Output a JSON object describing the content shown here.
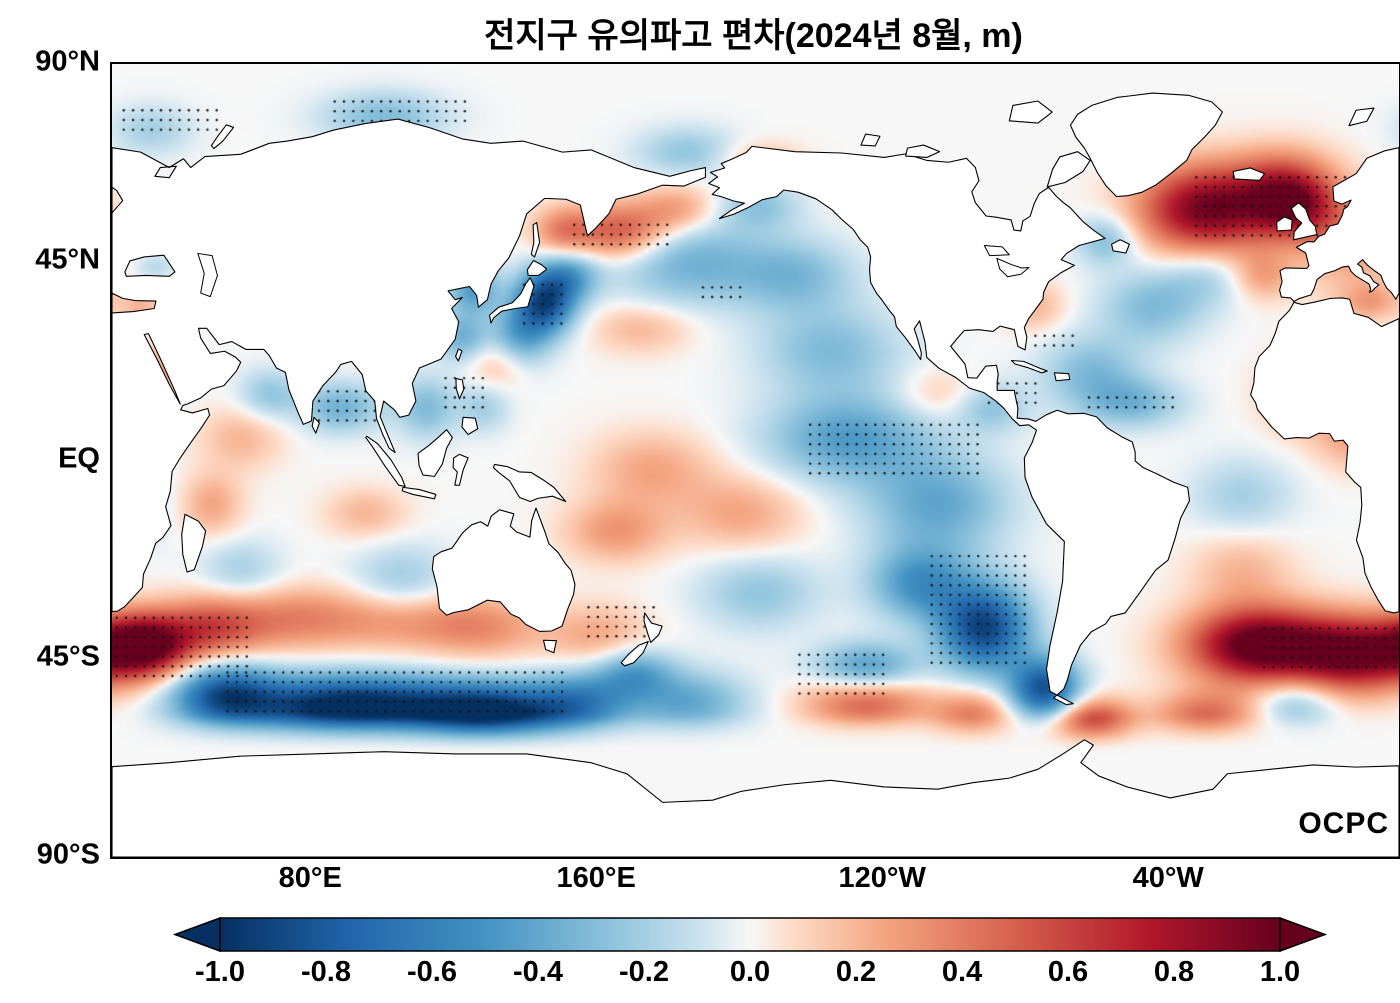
{
  "title": "전지구 유의파고 편차(2024년 8월, m)",
  "logo_text": "OCPC",
  "axes": {
    "y_ticks": [
      {
        "label": "90°N",
        "lat": 90
      },
      {
        "label": "45°N",
        "lat": 45
      },
      {
        "label": "EQ",
        "lat": 0
      },
      {
        "label": "45°S",
        "lat": -45
      },
      {
        "label": "90°S",
        "lat": -90
      }
    ],
    "x_ticks": [
      {
        "label": "80°E",
        "lon": 80
      },
      {
        "label": "160°E",
        "lon": 160
      },
      {
        "label": "120°W",
        "lon": 240
      },
      {
        "label": "40°W",
        "lon": 320
      }
    ]
  },
  "colorbar": {
    "ticks": [
      {
        "label": "-1.0",
        "value": -1.0
      },
      {
        "label": "-0.8",
        "value": -0.8
      },
      {
        "label": "-0.6",
        "value": -0.6
      },
      {
        "label": "-0.4",
        "value": -0.4
      },
      {
        "label": "-0.2",
        "value": -0.2
      },
      {
        "label": "0.0",
        "value": 0.0
      },
      {
        "label": "0.2",
        "value": 0.2
      },
      {
        "label": "0.4",
        "value": 0.4
      },
      {
        "label": "0.6",
        "value": 0.6
      },
      {
        "label": "0.8",
        "value": 0.8
      },
      {
        "label": "1.0",
        "value": 1.0
      }
    ]
  },
  "chart_data": {
    "type": "heatmap",
    "title": "전지구 유의파고 편차(2024년 8월, m)",
    "units": "m",
    "projection": "equirectangular",
    "lon_range": [
      24,
      384
    ],
    "lat_range": [
      -90,
      90
    ],
    "value_range": [
      -1.0,
      1.0
    ],
    "legend_position": "bottom",
    "colormap_stops": [
      [
        -1.0,
        "#053061"
      ],
      [
        -0.75,
        "#2166ac"
      ],
      [
        -0.5,
        "#4393c3"
      ],
      [
        -0.25,
        "#92c5de"
      ],
      [
        -0.08,
        "#d1e5f0"
      ],
      [
        0.0,
        "#f7f7f7"
      ],
      [
        0.08,
        "#fddbc7"
      ],
      [
        0.25,
        "#f4a582"
      ],
      [
        0.5,
        "#d6604d"
      ],
      [
        0.75,
        "#b2182b"
      ],
      [
        1.0,
        "#67001f"
      ]
    ],
    "anomaly_features": [
      {
        "lon": 33,
        "lat": -42,
        "amp": 1.05,
        "sx": 9,
        "sy": 5
      },
      {
        "lon": 52,
        "lat": -38,
        "amp": 0.5,
        "sx": 10,
        "sy": 5
      },
      {
        "lon": 75,
        "lat": -36,
        "amp": 0.35,
        "sx": 14,
        "sy": 5
      },
      {
        "lon": 105,
        "lat": -36,
        "amp": 0.3,
        "sx": 14,
        "sy": 5
      },
      {
        "lon": 128,
        "lat": -38,
        "amp": 0.3,
        "sx": 12,
        "sy": 5
      },
      {
        "lon": 160,
        "lat": -40,
        "amp": 0.25,
        "sx": 10,
        "sy": 5
      },
      {
        "lon": 345,
        "lat": -42,
        "amp": 1.1,
        "sx": 14,
        "sy": 6
      },
      {
        "lon": 372,
        "lat": -44,
        "amp": 0.9,
        "sx": 12,
        "sy": 6
      },
      {
        "lon": 330,
        "lat": 57,
        "amp": 0.95,
        "sx": 13,
        "sy": 7
      },
      {
        "lon": 352,
        "lat": 62,
        "amp": 0.55,
        "sx": 10,
        "sy": 6
      },
      {
        "lon": 355,
        "lat": 57,
        "amp": 0.5,
        "sx": 8,
        "sy": 5
      },
      {
        "lon": 370,
        "lat": 50,
        "amp": 0.3,
        "sx": 10,
        "sy": 8
      },
      {
        "lon": 346,
        "lat": 42,
        "amp": 0.25,
        "sx": 6,
        "sy": 4
      },
      {
        "lon": 166,
        "lat": 52,
        "amp": 0.55,
        "sx": 9,
        "sy": 4.5
      },
      {
        "lon": 150,
        "lat": 52,
        "amp": 0.35,
        "sx": 6,
        "sy": 4
      },
      {
        "lon": 182,
        "lat": 57,
        "amp": 0.3,
        "sx": 8,
        "sy": 4
      },
      {
        "lon": 175,
        "lat": -2,
        "amp": 0.25,
        "sx": 12,
        "sy": 6
      },
      {
        "lon": 165,
        "lat": -16,
        "amp": 0.3,
        "sx": 10,
        "sy": 5
      },
      {
        "lon": 200,
        "lat": -12,
        "amp": 0.25,
        "sx": 12,
        "sy": 6
      },
      {
        "lon": 235,
        "lat": -55,
        "amp": 0.5,
        "sx": 12,
        "sy": 4
      },
      {
        "lon": 265,
        "lat": -58,
        "amp": 0.4,
        "sx": 8,
        "sy": 4
      },
      {
        "lon": 298,
        "lat": -60,
        "amp": 0.7,
        "sx": 8,
        "sy": 4
      },
      {
        "lon": 330,
        "lat": -58,
        "amp": 0.45,
        "sx": 10,
        "sy": 4
      },
      {
        "lon": 358,
        "lat": 15,
        "amp": 0.3,
        "sx": 8,
        "sy": 6
      },
      {
        "lon": 372,
        "lat": 5,
        "amp": 0.25,
        "sx": 8,
        "sy": 5
      },
      {
        "lon": 340,
        "lat": -25,
        "amp": 0.2,
        "sx": 10,
        "sy": 6
      },
      {
        "lon": 60,
        "lat": 5,
        "amp": 0.2,
        "sx": 8,
        "sy": 5
      },
      {
        "lon": 52,
        "lat": -10,
        "amp": 0.25,
        "sx": 6,
        "sy": 5
      },
      {
        "lon": 95,
        "lat": -12,
        "amp": 0.2,
        "sx": 8,
        "sy": 4
      },
      {
        "lon": 132,
        "lat": 22,
        "amp": 0.2,
        "sx": 6,
        "sy": 4
      },
      {
        "lon": 172,
        "lat": 30,
        "amp": 0.2,
        "sx": 10,
        "sy": 4
      },
      {
        "lon": 282,
        "lat": 35,
        "amp": 0.2,
        "sx": 6,
        "sy": 4
      },
      {
        "lon": 255,
        "lat": 15,
        "amp": 0.15,
        "sx": 8,
        "sy": 4
      },
      {
        "lon": 376,
        "lat": 36,
        "amp": 0.25,
        "sx": 6,
        "sy": 3
      },
      {
        "lon": 205,
        "lat": 68,
        "amp": 0.2,
        "sx": 8,
        "sy": 3
      },
      {
        "lon": 32,
        "lat": 35,
        "amp": 0.2,
        "sx": 4,
        "sy": 2.5
      },
      {
        "lon": 38,
        "lat": 20,
        "amp": 0.25,
        "sx": 3,
        "sy": 5
      },
      {
        "lon": 90,
        "lat": -56,
        "amp": -1.1,
        "sx": 22,
        "sy": 5
      },
      {
        "lon": 130,
        "lat": -58,
        "amp": -1.0,
        "sx": 15,
        "sy": 5
      },
      {
        "lon": 55,
        "lat": -53,
        "amp": -0.7,
        "sx": 10,
        "sy": 5
      },
      {
        "lon": 155,
        "lat": -55,
        "amp": -0.5,
        "sx": 10,
        "sy": 5
      },
      {
        "lon": 185,
        "lat": -55,
        "amp": -0.4,
        "sx": 12,
        "sy": 5
      },
      {
        "lon": 145,
        "lat": 36,
        "amp": -0.85,
        "sx": 6,
        "sy": 5
      },
      {
        "lon": 138,
        "lat": 28,
        "amp": -0.4,
        "sx": 6,
        "sy": 5
      },
      {
        "lon": 152,
        "lat": 42,
        "amp": -0.4,
        "sx": 6,
        "sy": 4
      },
      {
        "lon": 185,
        "lat": 45,
        "amp": -0.35,
        "sx": 15,
        "sy": 7
      },
      {
        "lon": 215,
        "lat": 42,
        "amp": -0.3,
        "sx": 12,
        "sy": 6
      },
      {
        "lon": 225,
        "lat": 25,
        "amp": -0.3,
        "sx": 14,
        "sy": 7
      },
      {
        "lon": 230,
        "lat": 5,
        "amp": -0.45,
        "sx": 16,
        "sy": 7
      },
      {
        "lon": 255,
        "lat": -10,
        "amp": -0.4,
        "sx": 14,
        "sy": 8
      },
      {
        "lon": 268,
        "lat": -38,
        "amp": -0.9,
        "sx": 9,
        "sy": 7
      },
      {
        "lon": 285,
        "lat": -52,
        "amp": -0.85,
        "sx": 7,
        "sy": 5
      },
      {
        "lon": 250,
        "lat": -28,
        "amp": -0.5,
        "sx": 10,
        "sy": 6
      },
      {
        "lon": 205,
        "lat": -30,
        "amp": -0.25,
        "sx": 12,
        "sy": 6
      },
      {
        "lon": 88,
        "lat": 12,
        "amp": -0.35,
        "sx": 8,
        "sy": 4
      },
      {
        "lon": 68,
        "lat": 15,
        "amp": -0.25,
        "sx": 6,
        "sy": 4
      },
      {
        "lon": 112,
        "lat": 12,
        "amp": -0.3,
        "sx": 6,
        "sy": 5
      },
      {
        "lon": 125,
        "lat": 39,
        "amp": -0.45,
        "sx": 5,
        "sy": 4
      },
      {
        "lon": 122,
        "lat": 28,
        "amp": -0.35,
        "sx": 5,
        "sy": 4
      },
      {
        "lon": 105,
        "lat": -28,
        "amp": -0.25,
        "sx": 10,
        "sy": 6
      },
      {
        "lon": 298,
        "lat": 20,
        "amp": -0.3,
        "sx": 10,
        "sy": 6
      },
      {
        "lon": 310,
        "lat": 13,
        "amp": -0.3,
        "sx": 10,
        "sy": 4
      },
      {
        "lon": 315,
        "lat": 35,
        "amp": -0.3,
        "sx": 10,
        "sy": 6
      },
      {
        "lon": 302,
        "lat": 50,
        "amp": -0.3,
        "sx": 6,
        "sy": 4
      },
      {
        "lon": 340,
        "lat": -8,
        "amp": -0.2,
        "sx": 10,
        "sy": 6
      },
      {
        "lon": 30,
        "lat": -10,
        "amp": -0.2,
        "sx": 6,
        "sy": 6
      },
      {
        "lon": 185,
        "lat": 70,
        "amp": -0.25,
        "sx": 10,
        "sy": 4
      },
      {
        "lon": 100,
        "lat": 78,
        "amp": -0.3,
        "sx": 12,
        "sy": 4
      },
      {
        "lon": 35,
        "lat": 75,
        "amp": -0.2,
        "sx": 8,
        "sy": 4
      },
      {
        "lon": 170,
        "lat": -48,
        "amp": -0.4,
        "sx": 8,
        "sy": 4
      },
      {
        "lon": 235,
        "lat": -47,
        "amp": -0.45,
        "sx": 10,
        "sy": 4
      },
      {
        "lon": 270,
        "lat": 12,
        "amp": -0.25,
        "sx": 7,
        "sy": 4
      },
      {
        "lon": 330,
        "lat": 42,
        "amp": -0.2,
        "sx": 8,
        "sy": 5
      },
      {
        "lon": 355,
        "lat": -55,
        "amp": -0.3,
        "sx": 8,
        "sy": 4
      },
      {
        "lon": 60,
        "lat": -25,
        "amp": -0.2,
        "sx": 8,
        "sy": 5
      },
      {
        "lon": 205,
        "lat": 58,
        "amp": -0.25,
        "sx": 8,
        "sy": 4
      },
      {
        "lon": 36,
        "lat": 44,
        "amp": -0.15,
        "sx": 4,
        "sy": 2
      },
      {
        "lon": 128,
        "lat": 12,
        "amp": -0.2,
        "sx": 5,
        "sy": 4
      }
    ],
    "stippled_regions": [
      {
        "lon0": 24,
        "lon1": 62,
        "lat0": -50,
        "lat1": -34
      },
      {
        "lon0": 55,
        "lon1": 150,
        "lat0": -58,
        "lat1": -48
      },
      {
        "lon0": 138,
        "lon1": 152,
        "lat0": 30,
        "lat1": 40
      },
      {
        "lon0": 152,
        "lon1": 180,
        "lat0": 48,
        "lat1": 55
      },
      {
        "lon0": 218,
        "lon1": 268,
        "lat0": -4,
        "lat1": 9
      },
      {
        "lon0": 252,
        "lon1": 280,
        "lat0": -47,
        "lat1": -20
      },
      {
        "lon0": 326,
        "lon1": 384,
        "lat0": 50,
        "lat1": 66
      },
      {
        "lon0": 345,
        "lon1": 384,
        "lat0": -48,
        "lat1": -36
      },
      {
        "lon0": 78,
        "lon1": 98,
        "lat0": 8,
        "lat1": 16
      },
      {
        "lon0": 296,
        "lon1": 322,
        "lat0": 11,
        "lat1": 16
      },
      {
        "lon0": 116,
        "lon1": 128,
        "lat0": 11,
        "lat1": 19
      },
      {
        "lon0": 268,
        "lon1": 284,
        "lat0": 12,
        "lat1": 18
      },
      {
        "lon0": 156,
        "lon1": 176,
        "lat0": -41,
        "lat1": -33
      },
      {
        "lon0": 215,
        "lon1": 240,
        "lat0": -54,
        "lat1": -44
      },
      {
        "lon0": 188,
        "lon1": 202,
        "lat0": 36,
        "lat1": 41
      },
      {
        "lon0": 281,
        "lon1": 293,
        "lat0": 25,
        "lat1": 30
      },
      {
        "lon0": 85,
        "lon1": 125,
        "lat0": 76,
        "lat1": 82
      },
      {
        "lon0": 26,
        "lon1": 55,
        "lat0": 74,
        "lat1": 80
      }
    ]
  }
}
